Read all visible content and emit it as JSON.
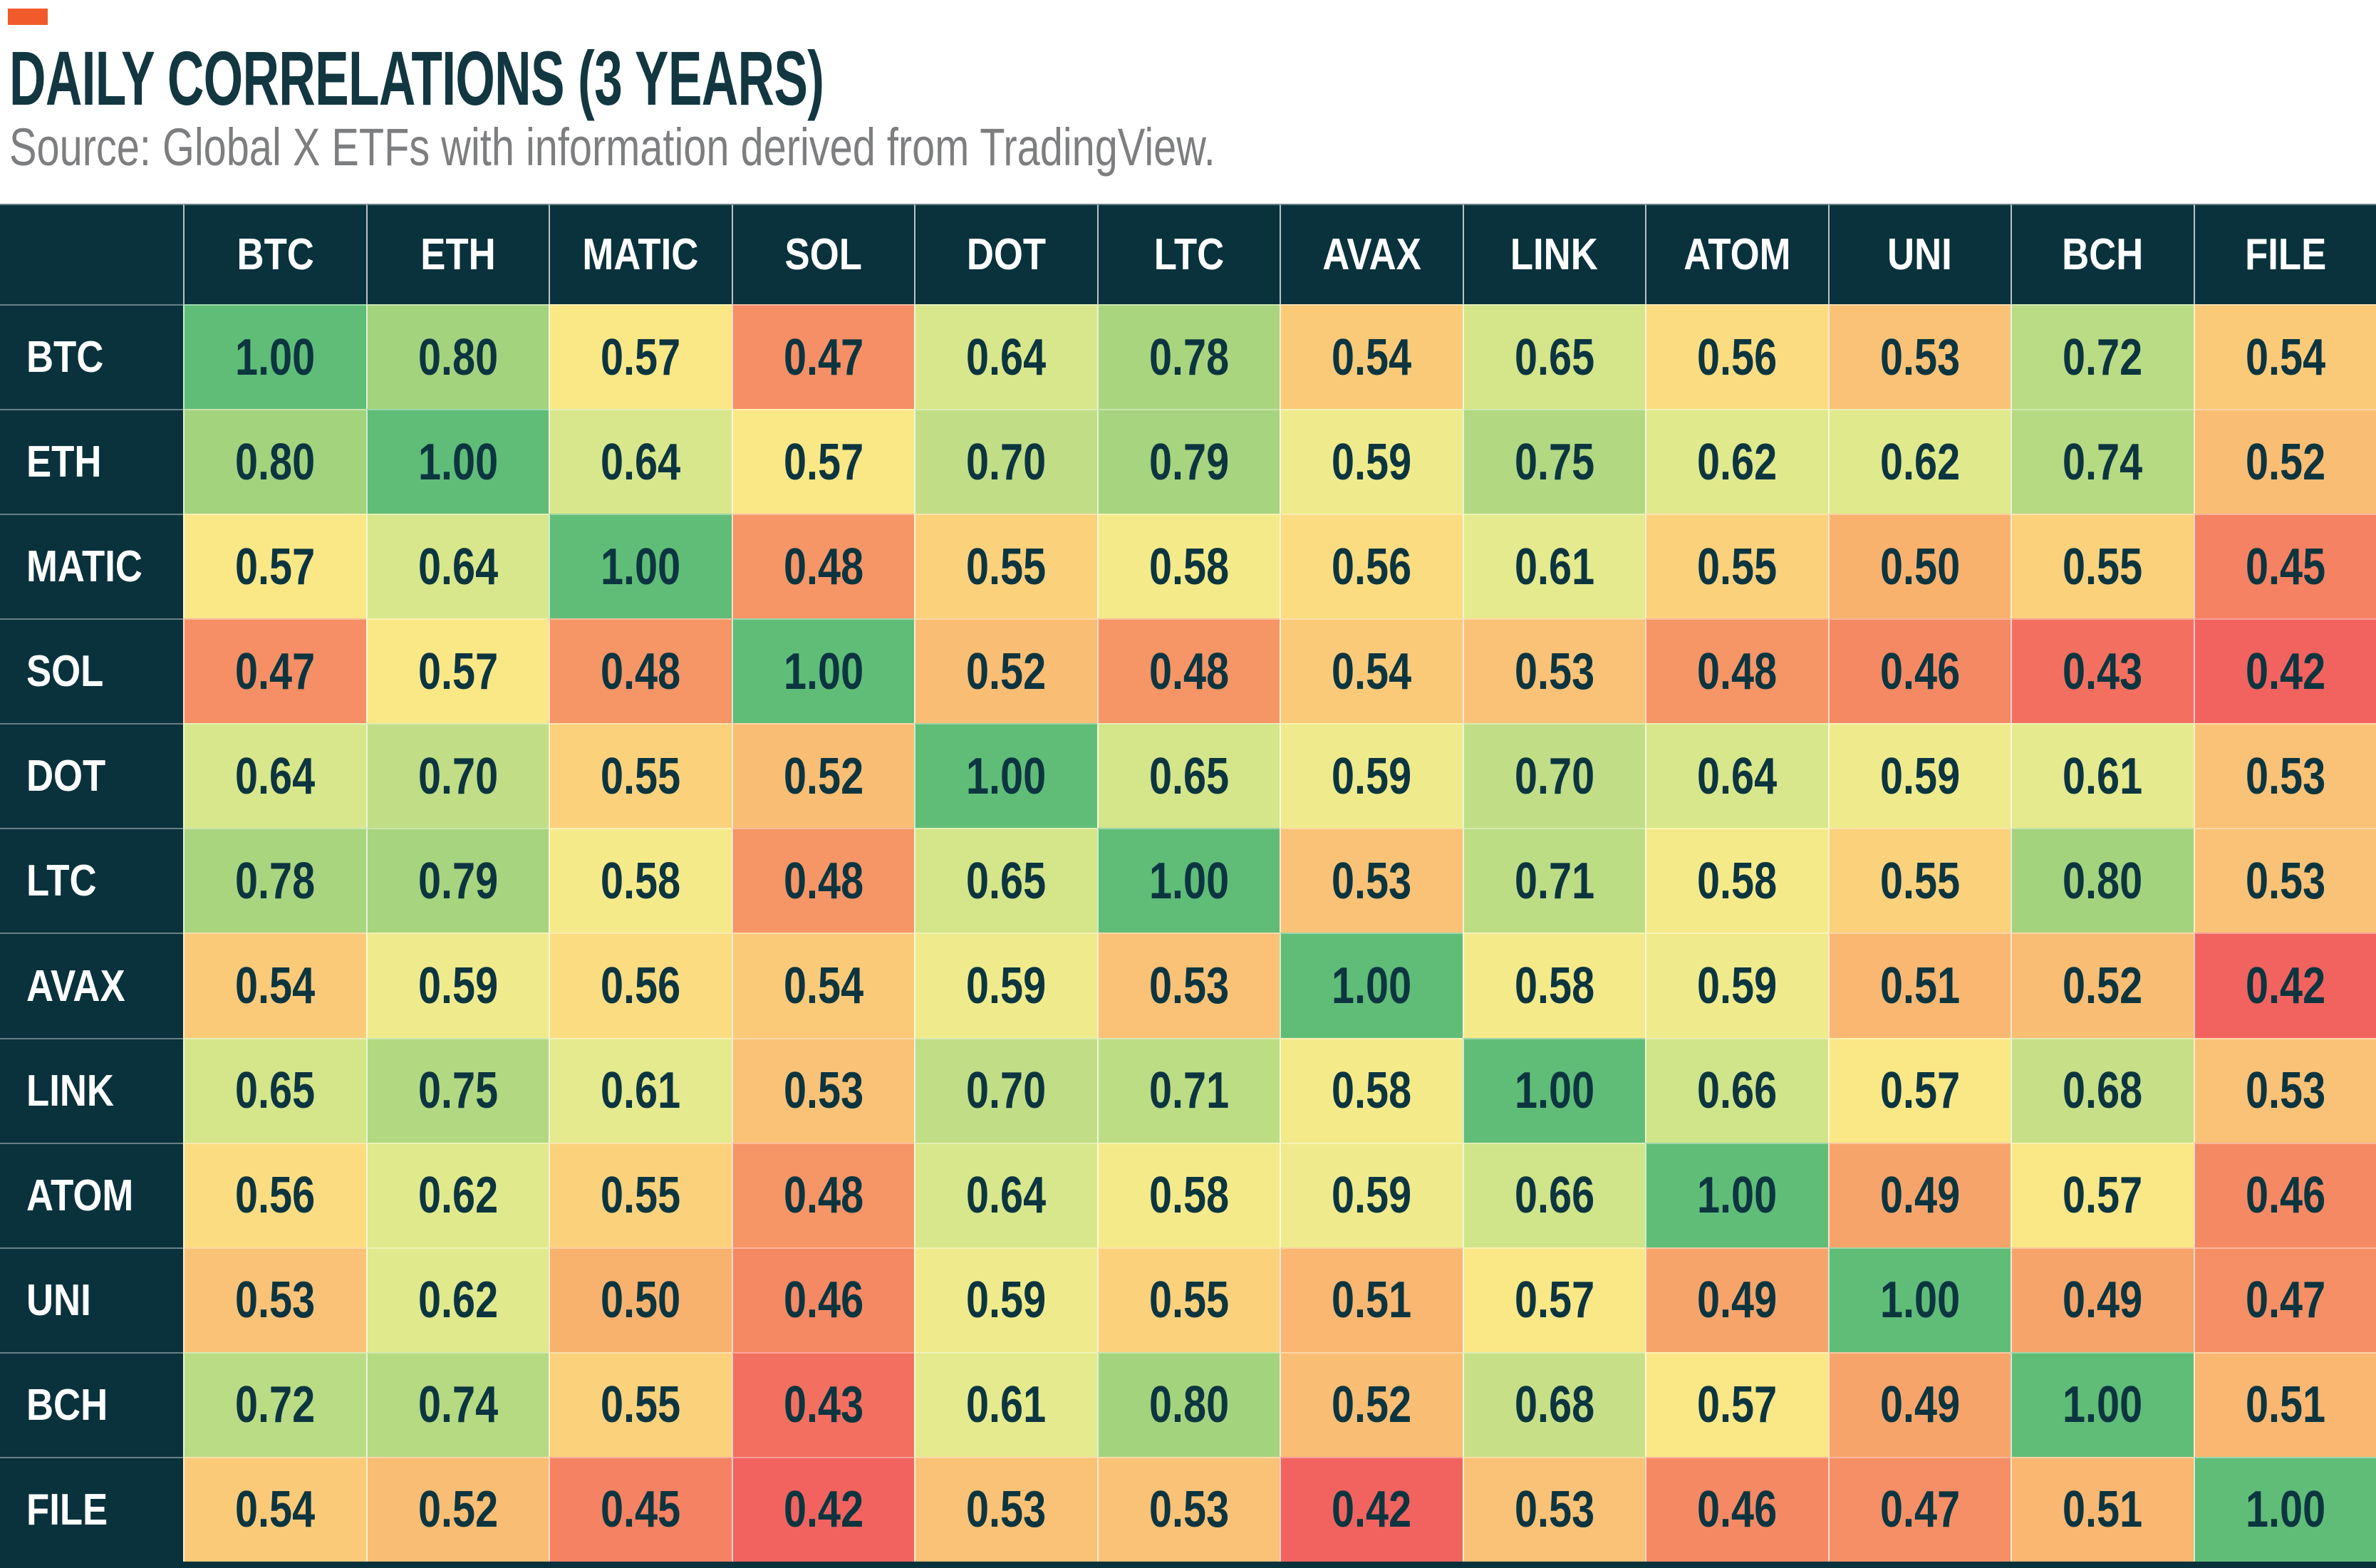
{
  "header": {
    "title": "DAILY CORRELATIONS (3 YEARS)",
    "source": "Source: Global X ETFs with information derived from TradingView."
  },
  "theme": {
    "accent_orange": "#f15b2b",
    "title_color": "#123740",
    "source_color": "#7d7e80",
    "header_bg": "#0a323c",
    "header_text": "#ffffff",
    "cell_text": "#0c3540",
    "diagonal_green": "#60bd78",
    "low_red": "#f2635f"
  },
  "chart_data": {
    "type": "heatmap",
    "title": "DAILY CORRELATIONS (3 YEARS)",
    "source": "Source: Global X ETFs with information derived from TradingView.",
    "categories": [
      "BTC",
      "ETH",
      "MATIC",
      "SOL",
      "DOT",
      "LTC",
      "AVAX",
      "LINK",
      "ATOM",
      "UNI",
      "BCH",
      "FILE"
    ],
    "rows": [
      "BTC",
      "ETH",
      "MATIC",
      "SOL",
      "DOT",
      "LTC",
      "AVAX",
      "LINK",
      "ATOM",
      "UNI",
      "BCH",
      "FILE"
    ],
    "values": [
      [
        1.0,
        0.8,
        0.57,
        0.47,
        0.64,
        0.78,
        0.54,
        0.65,
        0.56,
        0.53,
        0.72,
        0.54
      ],
      [
        0.8,
        1.0,
        0.64,
        0.57,
        0.7,
        0.79,
        0.59,
        0.75,
        0.62,
        0.62,
        0.74,
        0.52
      ],
      [
        0.57,
        0.64,
        1.0,
        0.48,
        0.55,
        0.58,
        0.56,
        0.61,
        0.55,
        0.5,
        0.55,
        0.45
      ],
      [
        0.47,
        0.57,
        0.48,
        1.0,
        0.52,
        0.48,
        0.54,
        0.53,
        0.48,
        0.46,
        0.43,
        0.42
      ],
      [
        0.64,
        0.7,
        0.55,
        0.52,
        1.0,
        0.65,
        0.59,
        0.7,
        0.64,
        0.59,
        0.61,
        0.53
      ],
      [
        0.78,
        0.79,
        0.58,
        0.48,
        0.65,
        1.0,
        0.53,
        0.71,
        0.58,
        0.55,
        0.8,
        0.53
      ],
      [
        0.54,
        0.59,
        0.56,
        0.54,
        0.59,
        0.53,
        1.0,
        0.58,
        0.59,
        0.51,
        0.52,
        0.42
      ],
      [
        0.65,
        0.75,
        0.61,
        0.53,
        0.7,
        0.71,
        0.58,
        1.0,
        0.66,
        0.57,
        0.68,
        0.53
      ],
      [
        0.56,
        0.62,
        0.55,
        0.48,
        0.64,
        0.58,
        0.59,
        0.66,
        1.0,
        0.49,
        0.57,
        0.46
      ],
      [
        0.53,
        0.62,
        0.5,
        0.46,
        0.59,
        0.55,
        0.51,
        0.57,
        0.49,
        1.0,
        0.49,
        0.47
      ],
      [
        0.72,
        0.74,
        0.55,
        0.43,
        0.61,
        0.8,
        0.52,
        0.68,
        0.57,
        0.49,
        1.0,
        0.51
      ],
      [
        0.54,
        0.52,
        0.45,
        0.42,
        0.53,
        0.53,
        0.42,
        0.53,
        0.46,
        0.47,
        0.51,
        1.0
      ]
    ],
    "value_range": [
      0.42,
      1.0
    ],
    "value_format": "0.00",
    "grid": true,
    "legend": "none",
    "color_scale": [
      [
        0.42,
        "#f2635f"
      ],
      [
        0.44,
        "#f47c60"
      ],
      [
        0.48,
        "#f69566"
      ],
      [
        0.5,
        "#f8b26e"
      ],
      [
        0.53,
        "#fac276"
      ],
      [
        0.55,
        "#fbd17c"
      ],
      [
        0.57,
        "#fae786"
      ],
      [
        0.585,
        "#f2eb8b"
      ],
      [
        0.6,
        "#e8eb8d"
      ],
      [
        0.64,
        "#d8e78b"
      ],
      [
        0.68,
        "#c7e087"
      ],
      [
        0.72,
        "#badc84"
      ],
      [
        0.8,
        "#a4d37d"
      ],
      [
        1.0,
        "#60bd78"
      ]
    ]
  }
}
